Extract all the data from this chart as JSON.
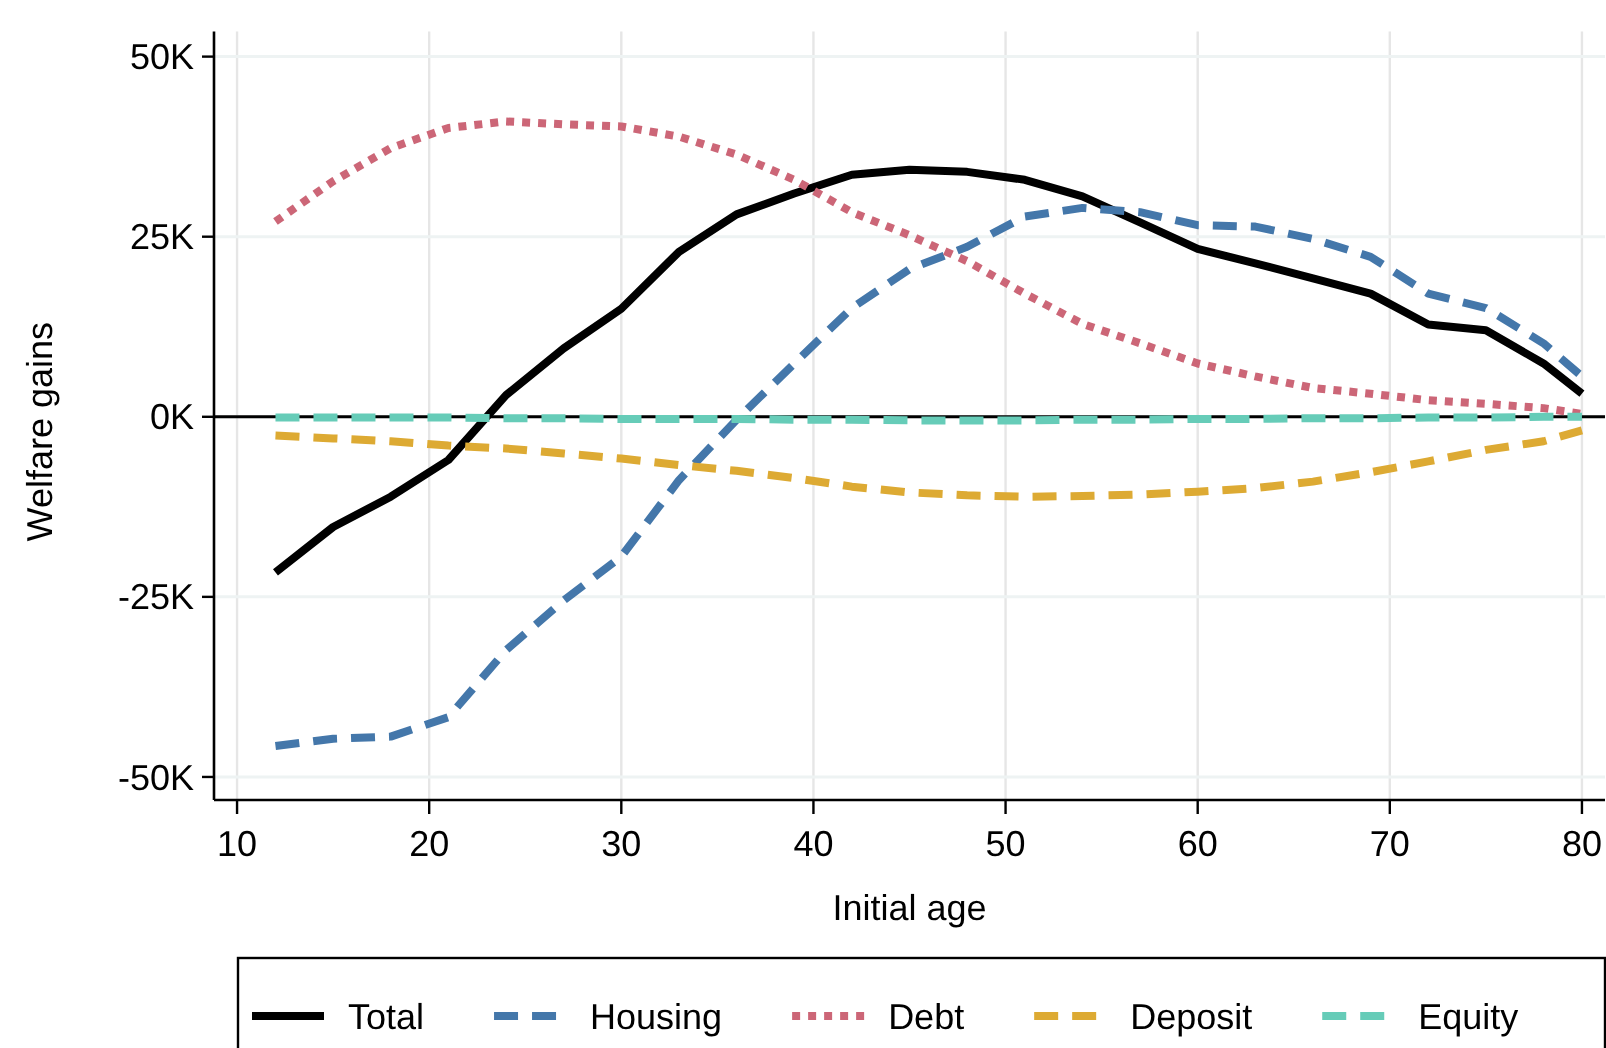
{
  "chart_data": {
    "type": "line",
    "xlabel": "Initial age",
    "ylabel": "Welfare gains",
    "x": [
      12,
      15,
      18,
      21,
      24,
      27,
      30,
      33,
      36,
      39,
      42,
      45,
      48,
      51,
      54,
      57,
      60,
      63,
      66,
      69,
      72,
      75,
      78,
      80
    ],
    "series": [
      {
        "name": "Total",
        "color": "#000000",
        "line_style": "solid",
        "values": [
          -21600,
          -15300,
          -11100,
          -6000,
          3000,
          9500,
          15000,
          22900,
          28100,
          31000,
          33600,
          34300,
          34000,
          32900,
          30600,
          27000,
          23300,
          21300,
          19200,
          17100,
          12800,
          12000,
          7400,
          3200
        ]
      },
      {
        "name": "Housing",
        "color": "#4477aa",
        "line_style": "dashed",
        "values": [
          -45700,
          -44700,
          -44400,
          -41700,
          -32400,
          -25500,
          -19400,
          -8800,
          -400,
          7400,
          15100,
          20500,
          23600,
          27800,
          29000,
          28400,
          26600,
          26400,
          24700,
          22200,
          17100,
          15100,
          10200,
          5600
        ]
      },
      {
        "name": "Debt",
        "color": "#cc6677",
        "line_style": "dotted",
        "values": [
          27100,
          32700,
          37300,
          40100,
          41000,
          40600,
          40300,
          38900,
          36400,
          32900,
          28400,
          25200,
          21600,
          17100,
          12900,
          10200,
          7400,
          5600,
          4000,
          3200,
          2300,
          1800,
          1200,
          400
        ]
      },
      {
        "name": "Deposit",
        "color": "#ddaa33",
        "line_style": "dashed",
        "values": [
          -2600,
          -3000,
          -3400,
          -4000,
          -4400,
          -5100,
          -5800,
          -6700,
          -7500,
          -8500,
          -9700,
          -10500,
          -10900,
          -11100,
          -11000,
          -10800,
          -10400,
          -9900,
          -9000,
          -7700,
          -6200,
          -4600,
          -3400,
          -1900
        ]
      },
      {
        "name": "Equity",
        "color": "#66ccb8",
        "line_style": "dashed",
        "values": [
          -100,
          -100,
          -100,
          -100,
          -200,
          -200,
          -300,
          -300,
          -300,
          -400,
          -400,
          -500,
          -500,
          -500,
          -400,
          -400,
          -300,
          -300,
          -200,
          -200,
          -100,
          -100,
          0,
          0
        ]
      }
    ],
    "xlim": [
      8.8,
      81.2
    ],
    "xticks": [
      10,
      20,
      30,
      40,
      50,
      60,
      70,
      80
    ],
    "ylim": [
      -53200,
      53500
    ],
    "yticks": [
      {
        "value": -50000,
        "label": "-50K"
      },
      {
        "value": -25000,
        "label": "-25K"
      },
      {
        "value": 0,
        "label": "0K"
      },
      {
        "value": 25000,
        "label": "25K"
      },
      {
        "value": 50000,
        "label": "50K"
      }
    ],
    "ref_lines": [
      {
        "axis": "y",
        "value": 0,
        "color": "#000000"
      }
    ],
    "grid": true,
    "legend": "bottom"
  }
}
